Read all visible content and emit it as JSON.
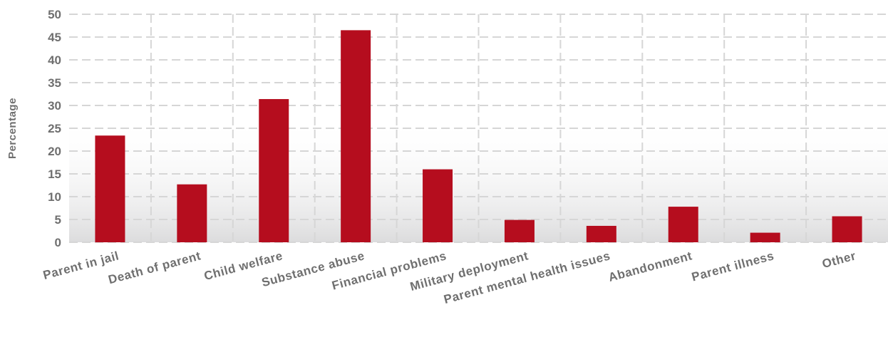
{
  "chart_data": {
    "type": "bar",
    "title": "",
    "xlabel": "",
    "ylabel": "Percentage",
    "categories": [
      "Parent in jail",
      "Death of parent",
      "Child welfare",
      "Substance abuse",
      "Financial problems",
      "Military deployment",
      "Parent mental health issues",
      "Abandonment",
      "Parent illness",
      "Other"
    ],
    "values": [
      23.4,
      12.7,
      31.4,
      46.5,
      16.0,
      4.9,
      3.6,
      7.8,
      2.1,
      5.7
    ],
    "ylim": [
      0,
      50
    ],
    "yticks": [
      "0",
      "5",
      "10",
      "15",
      "20",
      "25",
      "30",
      "35",
      "40",
      "45",
      "50"
    ],
    "grid": true,
    "legend": "none",
    "colors": {
      "bar": "#b50d1e",
      "grid": "#d6d6d6",
      "text": "#6f6f6f",
      "background_gradient_bottom": "#dcdcdd"
    }
  }
}
